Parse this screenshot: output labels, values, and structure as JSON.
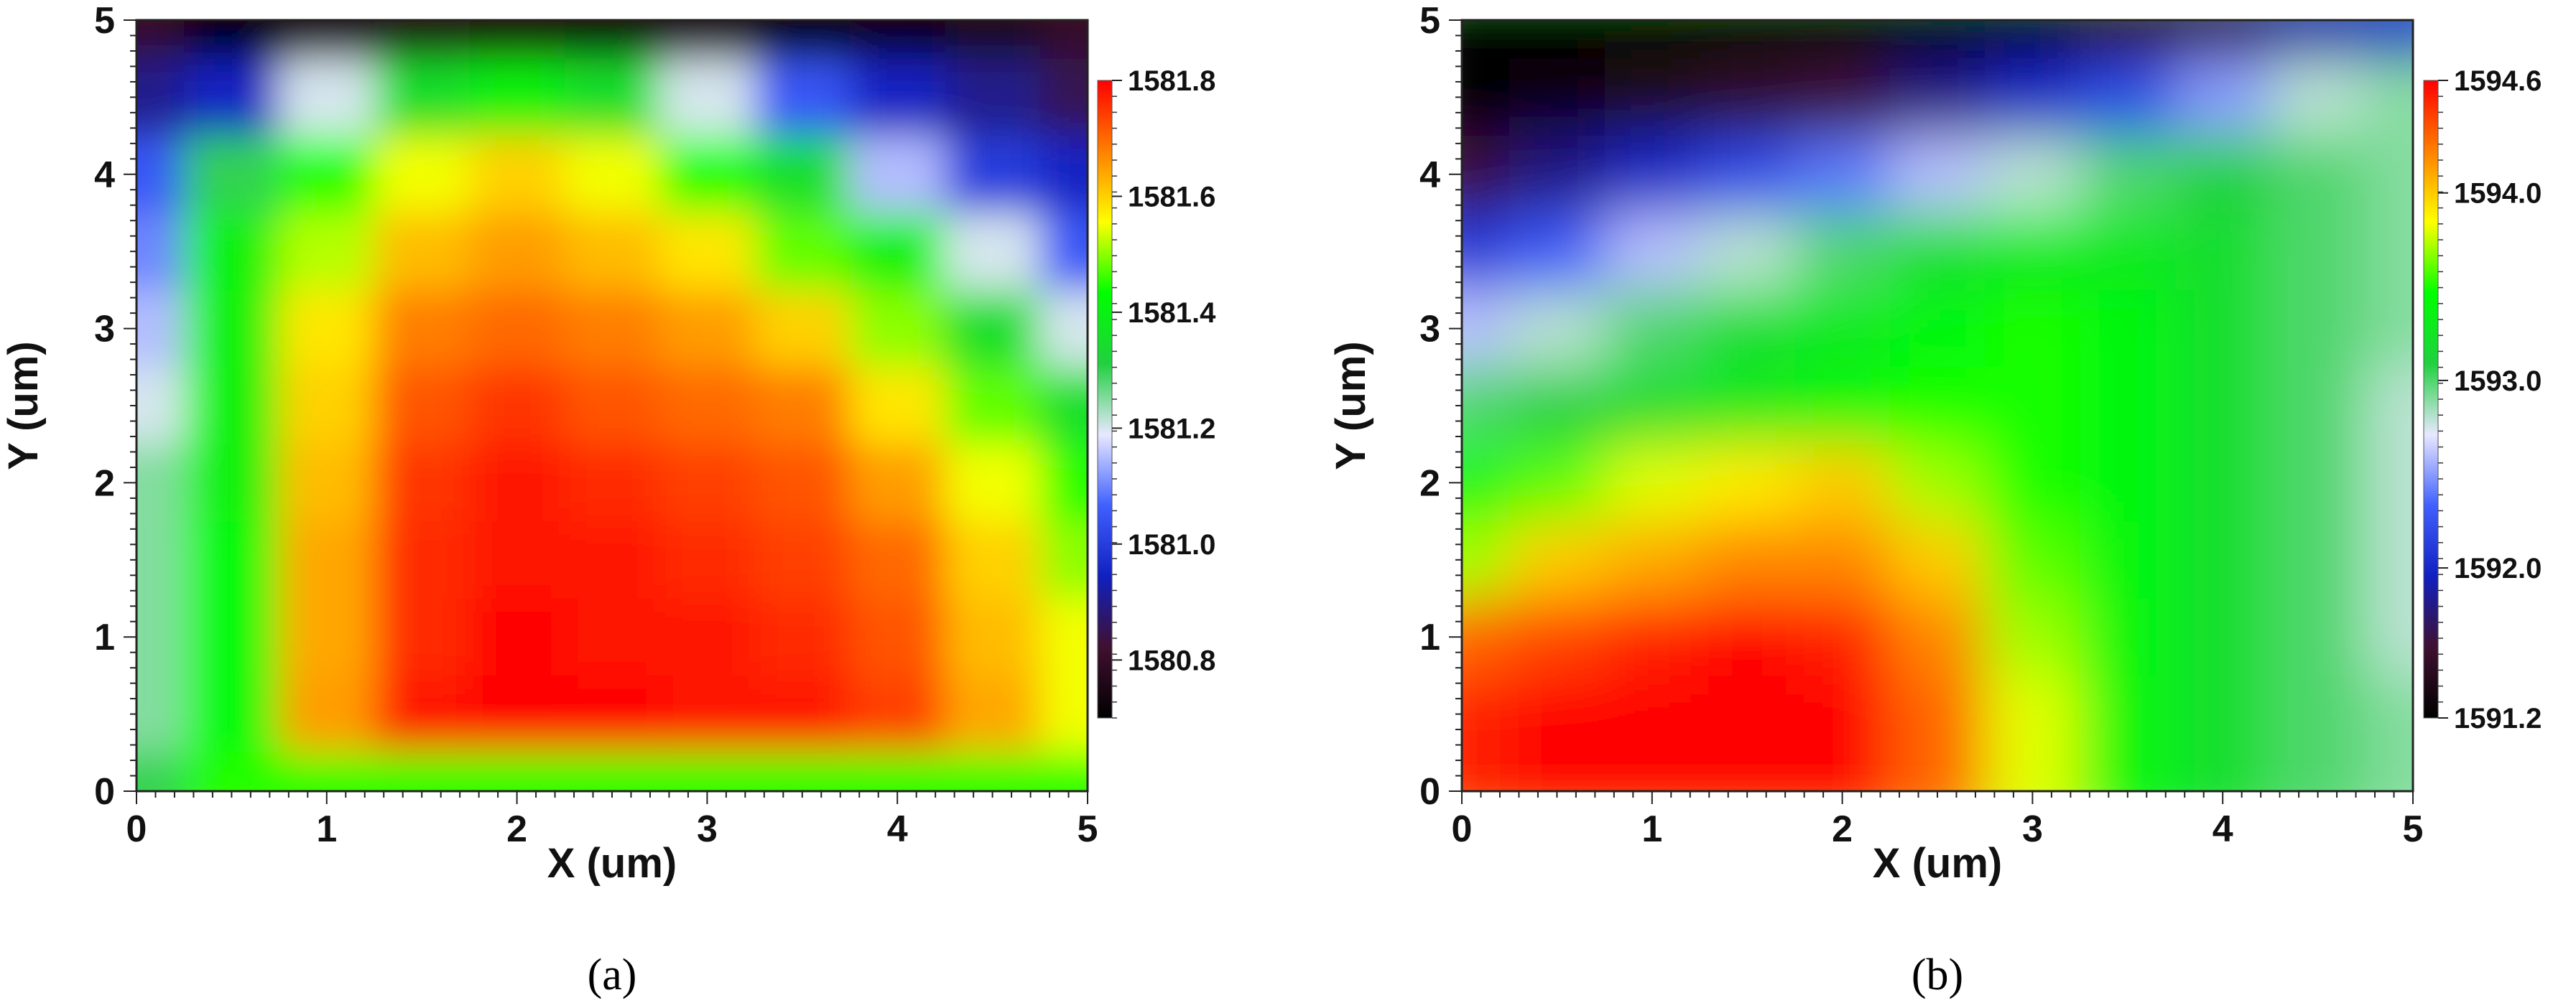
{
  "chart_data": [
    {
      "type": "heatmap",
      "caption": "(a)",
      "xlabel": "X (um)",
      "ylabel": "Y (um)",
      "xlim": [
        0,
        5
      ],
      "ylim": [
        0,
        5
      ],
      "xticks": [
        "0",
        "1",
        "2",
        "3",
        "4",
        "5"
      ],
      "yticks": [
        "0",
        "1",
        "2",
        "3",
        "4",
        "5"
      ],
      "colorbar": {
        "min": 1580.7,
        "max": 1581.8,
        "ticks": [
          "1581.8",
          "1581.6",
          "1581.4",
          "1581.2",
          "1581.0",
          "1580.8"
        ],
        "tick_values": [
          1581.8,
          1581.6,
          1581.4,
          1581.2,
          1581.0,
          1580.8
        ],
        "colors": [
          "#000000",
          "#401030",
          "#1020c0",
          "#4060ff",
          "#e8e8ff",
          "#20d040",
          "#00ff00",
          "#ffff00",
          "#ff8000",
          "#ff0000"
        ]
      },
      "grid": [
        [
          1580.8,
          1580.7,
          1580.72,
          1580.75,
          1580.74,
          1580.73,
          1580.72,
          1580.7,
          1580.72,
          1580.75,
          1580.8
        ],
        [
          1580.9,
          1580.95,
          1581.2,
          1581.35,
          1581.4,
          1581.35,
          1581.2,
          1581.05,
          1580.95,
          1580.9,
          1580.85
        ],
        [
          1581.05,
          1581.3,
          1581.45,
          1581.55,
          1581.6,
          1581.55,
          1581.45,
          1581.35,
          1581.15,
          1581.0,
          1580.95
        ],
        [
          1581.1,
          1581.4,
          1581.52,
          1581.62,
          1581.65,
          1581.62,
          1581.58,
          1581.48,
          1581.4,
          1581.2,
          1581.05
        ],
        [
          1581.15,
          1581.4,
          1581.58,
          1581.68,
          1581.7,
          1581.68,
          1581.65,
          1581.6,
          1581.5,
          1581.35,
          1581.2
        ],
        [
          1581.2,
          1581.4,
          1581.6,
          1581.72,
          1581.75,
          1581.72,
          1581.7,
          1581.68,
          1581.58,
          1581.48,
          1581.35
        ],
        [
          1581.25,
          1581.4,
          1581.62,
          1581.75,
          1581.78,
          1581.76,
          1581.74,
          1581.72,
          1581.65,
          1581.55,
          1581.45
        ],
        [
          1581.25,
          1581.42,
          1581.64,
          1581.76,
          1581.78,
          1581.78,
          1581.76,
          1581.74,
          1581.7,
          1581.6,
          1581.5
        ],
        [
          1581.25,
          1581.42,
          1581.64,
          1581.76,
          1581.8,
          1581.78,
          1581.78,
          1581.76,
          1581.72,
          1581.62,
          1581.55
        ],
        [
          1581.25,
          1581.42,
          1581.65,
          1581.78,
          1581.8,
          1581.8,
          1581.78,
          1581.78,
          1581.74,
          1581.64,
          1581.55
        ],
        [
          1581.3,
          1581.45,
          1581.45,
          1581.45,
          1581.45,
          1581.45,
          1581.45,
          1581.45,
          1581.45,
          1581.45,
          1581.45
        ]
      ]
    },
    {
      "type": "heatmap",
      "caption": "(b)",
      "xlabel": "X (um)",
      "ylabel": "Y (um)",
      "xlim": [
        0,
        5
      ],
      "ylim": [
        0,
        5
      ],
      "xticks": [
        "0",
        "1",
        "2",
        "3",
        "4",
        "5"
      ],
      "yticks": [
        "0",
        "1",
        "2",
        "3",
        "4",
        "5"
      ],
      "colorbar": {
        "min": 1591.2,
        "max": 1594.6,
        "ticks": [
          "1594.6",
          "1594.0",
          "1593.0",
          "1592.0",
          "1591.2"
        ],
        "tick_values": [
          1594.6,
          1594.0,
          1593.0,
          1592.0,
          1591.2
        ],
        "colors": [
          "#000000",
          "#401030",
          "#1020c0",
          "#4060ff",
          "#e8e8ff",
          "#20d040",
          "#00ff00",
          "#ffff00",
          "#ff8000",
          "#ff0000"
        ]
      },
      "grid": [
        [
          1591.2,
          1591.2,
          1591.2,
          1591.2,
          1591.2,
          1591.2,
          1591.3,
          1591.5,
          1591.7,
          1591.9,
          1592.0
        ],
        [
          1591.2,
          1591.3,
          1591.4,
          1591.5,
          1591.6,
          1591.8,
          1592.0,
          1592.2,
          1592.5,
          1592.8,
          1592.9
        ],
        [
          1591.6,
          1591.8,
          1592.0,
          1592.2,
          1592.4,
          1592.6,
          1592.8,
          1593.0,
          1593.1,
          1593.0,
          1592.9
        ],
        [
          1592.1,
          1592.3,
          1592.6,
          1592.8,
          1593.0,
          1593.2,
          1593.3,
          1593.3,
          1593.2,
          1593.0,
          1592.9
        ],
        [
          1592.6,
          1592.8,
          1593.0,
          1593.2,
          1593.3,
          1593.4,
          1593.5,
          1593.4,
          1593.2,
          1593.0,
          1592.9
        ],
        [
          1593.0,
          1593.1,
          1593.2,
          1593.3,
          1593.4,
          1593.5,
          1593.5,
          1593.4,
          1593.2,
          1593.0,
          1592.8
        ],
        [
          1593.4,
          1593.6,
          1593.8,
          1593.9,
          1594.0,
          1593.7,
          1593.5,
          1593.4,
          1593.2,
          1593.0,
          1592.8
        ],
        [
          1593.7,
          1594.0,
          1594.1,
          1594.2,
          1594.2,
          1594.0,
          1593.6,
          1593.4,
          1593.2,
          1593.0,
          1592.8
        ],
        [
          1594.3,
          1594.4,
          1594.5,
          1594.6,
          1594.5,
          1594.2,
          1593.7,
          1593.4,
          1593.2,
          1593.0,
          1592.8
        ],
        [
          1594.5,
          1594.6,
          1594.6,
          1594.6,
          1594.6,
          1594.3,
          1593.8,
          1593.4,
          1593.2,
          1593.0,
          1592.9
        ],
        [
          1594.5,
          1594.6,
          1594.6,
          1594.6,
          1594.6,
          1594.3,
          1593.8,
          1593.4,
          1593.2,
          1593.0,
          1592.9
        ]
      ]
    }
  ]
}
